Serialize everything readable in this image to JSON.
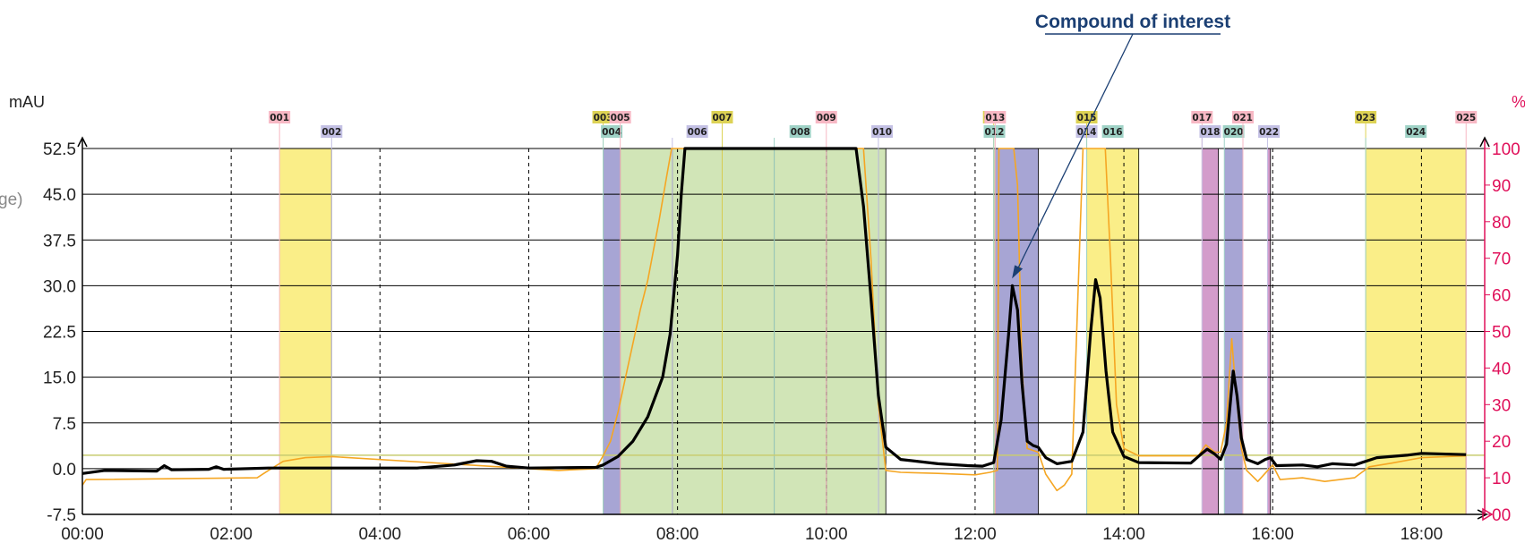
{
  "chart_data": {
    "type": "line",
    "title": "",
    "xlabel": "",
    "y_unit": "mAU",
    "y2_unit": "%",
    "left_partial_label": "ge)",
    "x_range_min": [
      0,
      18.85
    ],
    "ylim": [
      -7.5,
      52.5
    ],
    "y2lim": [
      0,
      100
    ],
    "x_ticks": [
      "00:00",
      "02:00",
      "04:00",
      "06:00",
      "08:00",
      "10:00",
      "12:00",
      "14:00",
      "16:00",
      "18:00"
    ],
    "y_ticks": [
      "-7.5",
      "0.0",
      "7.5",
      "15.0",
      "22.5",
      "30.0",
      "37.5",
      "45.0",
      "52.5"
    ],
    "y2_ticks": [
      "00",
      "10",
      "20",
      "30",
      "40",
      "50",
      "60",
      "70",
      "80",
      "90",
      "100"
    ],
    "annotation": {
      "text": "Compound of interest",
      "x_min": 12.52,
      "y": 30.0
    },
    "threshold_mAU": 2.2,
    "colors": {
      "signal": "#000000",
      "percent_trace": "#f5a623",
      "threshold": "#c8cc70",
      "annotation": "#1b3f73",
      "right_axis": "#e0105a",
      "fraction_yellow": "#faee88",
      "fraction_green": "#d1e5b7",
      "fraction_purple": "#a7a5d4",
      "fraction_pink": "#d39ccb",
      "label_yellow": "#ddd255",
      "label_teal": "#9fd2c6",
      "label_pink": "#f7b8c4",
      "label_lavender": "#c3c0e4"
    },
    "fractions": [
      {
        "id": "001",
        "start": 2.65,
        "end": 3.35,
        "fill": "yellow",
        "label": "pink",
        "row": 0
      },
      {
        "id": "002",
        "start": 3.35,
        "end": 3.35,
        "fill": "none",
        "label": "lavender",
        "row": 1
      },
      {
        "id": "003",
        "start": 7.0,
        "end": 7.0,
        "fill": "none",
        "label": "yellow",
        "row": 0
      },
      {
        "id": "004",
        "start": 7.0,
        "end": 7.23,
        "fill": "purple",
        "label": "teal",
        "row": 1
      },
      {
        "id": "005",
        "start": 7.23,
        "end": 7.93,
        "fill": "green",
        "label": "pink",
        "row": 0
      },
      {
        "id": "006",
        "start": 7.93,
        "end": 8.6,
        "fill": "green",
        "label": "lavender",
        "row": 1
      },
      {
        "id": "007",
        "start": 8.6,
        "end": 9.3,
        "fill": "green",
        "label": "yellow",
        "row": 0
      },
      {
        "id": "008",
        "start": 9.3,
        "end": 10.0,
        "fill": "green",
        "label": "teal",
        "row": 1
      },
      {
        "id": "009",
        "start": 10.0,
        "end": 10.7,
        "fill": "green",
        "label": "pink",
        "row": 0
      },
      {
        "id": "010",
        "start": 10.7,
        "end": 10.8,
        "fill": "green",
        "label": "lavender",
        "row": 1
      },
      {
        "id": "011",
        "start": 12.25,
        "end": 12.25,
        "fill": "none",
        "label": "yellow",
        "row": 0
      },
      {
        "id": "012",
        "start": 12.25,
        "end": 12.27,
        "fill": "green",
        "label": "teal",
        "row": 1
      },
      {
        "id": "013",
        "start": 12.27,
        "end": 12.85,
        "fill": "purple",
        "label": "pink",
        "row": 0
      },
      {
        "id": "014",
        "start": 13.5,
        "end": 13.5,
        "fill": "none",
        "label": "lavender",
        "row": 1
      },
      {
        "id": "015",
        "start": 13.5,
        "end": 13.5,
        "fill": "none",
        "label": "yellow",
        "row": 0
      },
      {
        "id": "016",
        "start": 13.5,
        "end": 14.2,
        "fill": "yellow",
        "label": "teal",
        "row": 1
      },
      {
        "id": "017",
        "start": 15.05,
        "end": 15.05,
        "fill": "none",
        "label": "pink",
        "row": 0
      },
      {
        "id": "018",
        "start": 15.05,
        "end": 15.27,
        "fill": "pink",
        "label": "lavender",
        "row": 1
      },
      {
        "id": "020",
        "start": 15.35,
        "end": 15.6,
        "fill": "purple",
        "label": "teal",
        "row": 1
      },
      {
        "id": "021",
        "start": 15.6,
        "end": 15.6,
        "fill": "none",
        "label": "pink",
        "row": 0
      },
      {
        "id": "022",
        "start": 15.93,
        "end": 15.97,
        "fill": "pink",
        "label": "lavender",
        "row": 1
      },
      {
        "id": "023",
        "start": 17.25,
        "end": 17.25,
        "fill": "none",
        "label": "yellow",
        "row": 0
      },
      {
        "id": "024",
        "start": 17.25,
        "end": 18.6,
        "fill": "yellow",
        "label": "teal",
        "row": 1
      },
      {
        "id": "025",
        "start": 18.6,
        "end": 18.6,
        "fill": "none",
        "label": "pink",
        "row": 0
      }
    ],
    "series": [
      {
        "axis": "left",
        "color_key": "signal",
        "points": [
          [
            0,
            -0.8
          ],
          [
            0.3,
            -0.3
          ],
          [
            1.0,
            -0.4
          ],
          [
            1.1,
            0.5
          ],
          [
            1.2,
            -0.2
          ],
          [
            1.7,
            -0.1
          ],
          [
            1.8,
            0.3
          ],
          [
            1.9,
            -0.1
          ],
          [
            2.5,
            0.1
          ],
          [
            4.5,
            0.1
          ],
          [
            5.0,
            0.6
          ],
          [
            5.3,
            1.3
          ],
          [
            5.5,
            1.2
          ],
          [
            5.7,
            0.4
          ],
          [
            6.0,
            0.1
          ],
          [
            6.9,
            0.2
          ],
          [
            7.0,
            0.6
          ],
          [
            7.2,
            2.0
          ],
          [
            7.4,
            4.5
          ],
          [
            7.6,
            8.5
          ],
          [
            7.8,
            15.0
          ],
          [
            7.9,
            22.0
          ],
          [
            8.0,
            35.0
          ],
          [
            8.05,
            45.0
          ],
          [
            8.1,
            52.5
          ],
          [
            10.4,
            52.5
          ],
          [
            10.5,
            43.0
          ],
          [
            10.6,
            28.0
          ],
          [
            10.7,
            12.0
          ],
          [
            10.8,
            3.5
          ],
          [
            11.0,
            1.5
          ],
          [
            11.5,
            0.8
          ],
          [
            11.9,
            0.5
          ],
          [
            12.1,
            0.4
          ],
          [
            12.25,
            1.0
          ],
          [
            12.35,
            8.0
          ],
          [
            12.45,
            22.0
          ],
          [
            12.5,
            30.0
          ],
          [
            12.57,
            26.0
          ],
          [
            12.63,
            14.0
          ],
          [
            12.7,
            4.5
          ],
          [
            12.78,
            3.8
          ],
          [
            12.85,
            3.5
          ],
          [
            12.95,
            1.8
          ],
          [
            13.1,
            0.8
          ],
          [
            13.3,
            1.2
          ],
          [
            13.45,
            6.0
          ],
          [
            13.55,
            22.0
          ],
          [
            13.62,
            31.0
          ],
          [
            13.68,
            28.0
          ],
          [
            13.76,
            16.0
          ],
          [
            13.85,
            6.0
          ],
          [
            14.0,
            2.0
          ],
          [
            14.2,
            1.0
          ],
          [
            14.9,
            0.9
          ],
          [
            15.05,
            2.5
          ],
          [
            15.12,
            3.2
          ],
          [
            15.22,
            2.4
          ],
          [
            15.3,
            1.5
          ],
          [
            15.38,
            4.0
          ],
          [
            15.47,
            16.0
          ],
          [
            15.52,
            12.0
          ],
          [
            15.58,
            5.0
          ],
          [
            15.65,
            1.5
          ],
          [
            15.8,
            0.8
          ],
          [
            15.9,
            1.5
          ],
          [
            15.97,
            1.8
          ],
          [
            16.05,
            0.5
          ],
          [
            16.4,
            0.6
          ],
          [
            16.6,
            0.3
          ],
          [
            16.8,
            0.8
          ],
          [
            17.1,
            0.6
          ],
          [
            17.4,
            1.8
          ],
          [
            17.8,
            2.2
          ],
          [
            18.0,
            2.5
          ],
          [
            18.6,
            2.3
          ]
        ]
      },
      {
        "axis": "right",
        "color_key": "percent_trace",
        "points": [
          [
            0,
            8.0
          ],
          [
            0.05,
            9.5
          ],
          [
            2.35,
            10.0
          ],
          [
            2.5,
            12.0
          ],
          [
            2.7,
            14.5
          ],
          [
            3.0,
            15.5
          ],
          [
            3.35,
            15.8
          ],
          [
            6.4,
            12.0
          ],
          [
            6.9,
            12.5
          ],
          [
            7.0,
            16.0
          ],
          [
            7.1,
            20.0
          ],
          [
            7.2,
            28.0
          ],
          [
            7.35,
            42.0
          ],
          [
            7.5,
            56.0
          ],
          [
            7.6,
            64.0
          ],
          [
            7.75,
            80.0
          ],
          [
            7.85,
            92.0
          ],
          [
            7.92,
            100
          ],
          [
            10.4,
            100
          ],
          [
            10.5,
            100
          ],
          [
            10.6,
            70.0
          ],
          [
            10.7,
            30.0
          ],
          [
            10.8,
            12.0
          ],
          [
            11.0,
            11.5
          ],
          [
            11.5,
            11.2
          ],
          [
            12.0,
            10.8
          ],
          [
            12.2,
            11.5
          ],
          [
            12.3,
            12.0
          ],
          [
            12.32,
            100
          ],
          [
            12.52,
            100
          ],
          [
            12.57,
            90.0
          ],
          [
            12.63,
            40.0
          ],
          [
            12.7,
            18.0
          ],
          [
            12.85,
            17.0
          ],
          [
            12.95,
            11.0
          ],
          [
            13.1,
            6.5
          ],
          [
            13.2,
            8.0
          ],
          [
            13.3,
            11.0
          ],
          [
            13.45,
            100
          ],
          [
            13.75,
            100
          ],
          [
            13.82,
            70.0
          ],
          [
            13.9,
            30.0
          ],
          [
            14.0,
            18.0
          ],
          [
            14.2,
            16.0
          ],
          [
            15.0,
            16.0
          ],
          [
            15.1,
            19.0
          ],
          [
            15.22,
            17.0
          ],
          [
            15.3,
            17.0
          ],
          [
            15.38,
            25.0
          ],
          [
            15.45,
            48.0
          ],
          [
            15.5,
            35.0
          ],
          [
            15.58,
            18.0
          ],
          [
            15.65,
            12.0
          ],
          [
            15.8,
            9.0
          ],
          [
            16.0,
            13.5
          ],
          [
            16.1,
            9.5
          ],
          [
            16.4,
            10.0
          ],
          [
            16.7,
            9.0
          ],
          [
            17.1,
            10.0
          ],
          [
            17.3,
            13.0
          ],
          [
            17.6,
            14.0
          ],
          [
            18.0,
            15.5
          ],
          [
            18.6,
            16.0
          ]
        ]
      }
    ]
  }
}
